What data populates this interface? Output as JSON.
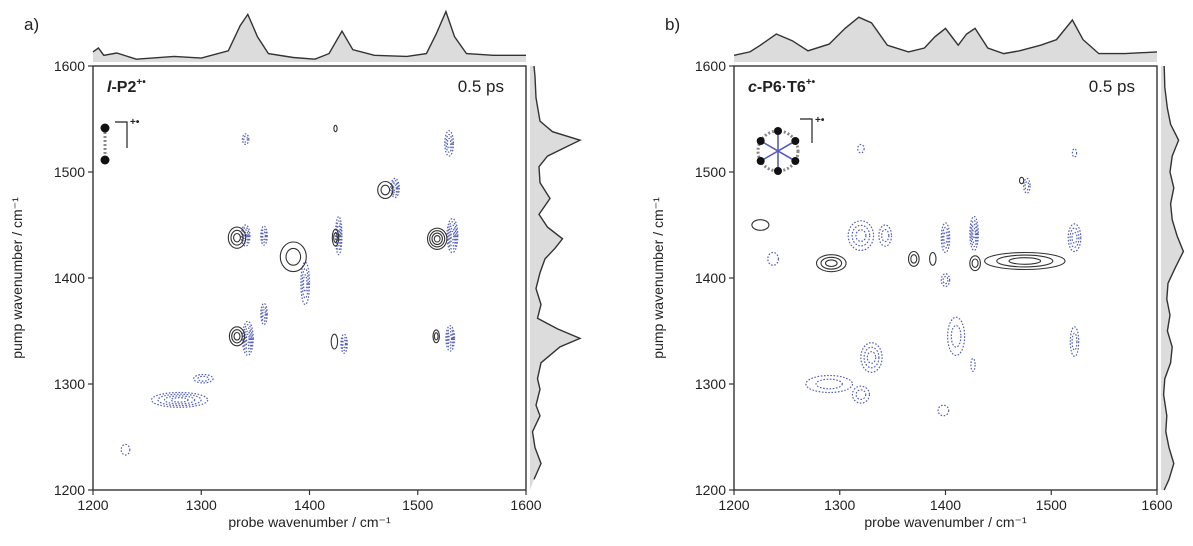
{
  "chart_data": [
    {
      "panel": "a)",
      "type": "contour",
      "sample_label": "l-P2",
      "sample_prefix": "l",
      "sample_rest": "-P2",
      "sample_charge": "+•",
      "time_label": "0.5 ps",
      "xlabel": "probe wavenumber / cm⁻¹",
      "ylabel": "pump wavenumber / cm⁻¹",
      "xlim": [
        1200,
        1600
      ],
      "ylim": [
        1200,
        1600
      ],
      "xticks": [
        "1200",
        "1300",
        "1400",
        "1500",
        "1600"
      ],
      "yticks": [
        "1200",
        "1300",
        "1400",
        "1500",
        "1600"
      ],
      "series": [
        {
          "sign": "negative",
          "color": "#5560b8",
          "style": "dotted",
          "peaks": [
            {
              "x": 1341,
              "y": 1440,
              "sx": 4,
              "sy": 10,
              "levels": 4
            },
            {
              "x": 1343,
              "y": 1343,
              "sx": 5,
              "sy": 16,
              "levels": 5
            },
            {
              "x": 1358,
              "y": 1440,
              "sx": 3,
              "sy": 9,
              "levels": 3
            },
            {
              "x": 1358,
              "y": 1366,
              "sx": 3,
              "sy": 10,
              "levels": 3
            },
            {
              "x": 1427,
              "y": 1440,
              "sx": 3,
              "sy": 18,
              "levels": 4
            },
            {
              "x": 1432,
              "y": 1338,
              "sx": 3,
              "sy": 9,
              "levels": 3
            },
            {
              "x": 1479,
              "y": 1485,
              "sx": 4,
              "sy": 9,
              "levels": 4
            },
            {
              "x": 1532,
              "y": 1440,
              "sx": 5,
              "sy": 16,
              "levels": 5
            },
            {
              "x": 1530,
              "y": 1343,
              "sx": 4,
              "sy": 12,
              "levels": 4
            },
            {
              "x": 1529,
              "y": 1527,
              "sx": 4,
              "sy": 12,
              "levels": 3
            },
            {
              "x": 1341,
              "y": 1531,
              "sx": 3,
              "sy": 5,
              "levels": 2
            },
            {
              "x": 1396,
              "y": 1395,
              "sx": 4,
              "sy": 20,
              "levels": 3
            },
            {
              "x": 1280,
              "y": 1285,
              "sx": 26,
              "sy": 7,
              "levels": 4
            },
            {
              "x": 1230,
              "y": 1238,
              "sx": 4,
              "sy": 5,
              "levels": 1
            },
            {
              "x": 1302,
              "y": 1305,
              "sx": 9,
              "sy": 4,
              "levels": 2
            }
          ]
        },
        {
          "sign": "positive",
          "color": "#333333",
          "style": "solid",
          "peaks": [
            {
              "x": 1333,
              "y": 1438,
              "sx": 8,
              "sy": 10,
              "levels": 3
            },
            {
              "x": 1333,
              "y": 1345,
              "sx": 7,
              "sy": 9,
              "levels": 3
            },
            {
              "x": 1385,
              "y": 1420,
              "sx": 12,
              "sy": 14,
              "levels": 2
            },
            {
              "x": 1424,
              "y": 1438,
              "sx": 3,
              "sy": 8,
              "levels": 2
            },
            {
              "x": 1423,
              "y": 1340,
              "sx": 3,
              "sy": 7,
              "levels": 1
            },
            {
              "x": 1470,
              "y": 1483,
              "sx": 7,
              "sy": 8,
              "levels": 2
            },
            {
              "x": 1518,
              "y": 1437,
              "sx": 9,
              "sy": 10,
              "levels": 4
            },
            {
              "x": 1517,
              "y": 1345,
              "sx": 3,
              "sy": 6,
              "levels": 2
            },
            {
              "x": 1424,
              "y": 1541,
              "sx": 1.5,
              "sy": 3,
              "levels": 1
            }
          ]
        }
      ],
      "top_trace": [
        [
          1200,
          0.18
        ],
        [
          1205,
          0.25
        ],
        [
          1210,
          0.12
        ],
        [
          1222,
          0.16
        ],
        [
          1240,
          0.05
        ],
        [
          1275,
          0.1
        ],
        [
          1300,
          0.07
        ],
        [
          1325,
          0.2
        ],
        [
          1336,
          0.65
        ],
        [
          1343,
          0.85
        ],
        [
          1352,
          0.45
        ],
        [
          1362,
          0.15
        ],
        [
          1385,
          0.08
        ],
        [
          1405,
          0.05
        ],
        [
          1418,
          0.15
        ],
        [
          1430,
          0.55
        ],
        [
          1440,
          0.22
        ],
        [
          1460,
          0.12
        ],
        [
          1490,
          0.1
        ],
        [
          1508,
          0.15
        ],
        [
          1517,
          0.5
        ],
        [
          1526,
          0.9
        ],
        [
          1534,
          0.45
        ],
        [
          1545,
          0.15
        ],
        [
          1570,
          0.12
        ],
        [
          1600,
          0.12
        ]
      ],
      "right_trace": [
        [
          1210,
          0.08
        ],
        [
          1225,
          0.22
        ],
        [
          1240,
          0.1
        ],
        [
          1255,
          0.05
        ],
        [
          1270,
          0.2
        ],
        [
          1280,
          0.12
        ],
        [
          1295,
          0.2
        ],
        [
          1305,
          0.15
        ],
        [
          1320,
          0.22
        ],
        [
          1335,
          0.6
        ],
        [
          1343,
          1.0
        ],
        [
          1352,
          0.55
        ],
        [
          1362,
          0.15
        ],
        [
          1375,
          0.22
        ],
        [
          1390,
          0.12
        ],
        [
          1405,
          0.2
        ],
        [
          1418,
          0.3
        ],
        [
          1428,
          0.5
        ],
        [
          1437,
          0.65
        ],
        [
          1448,
          0.35
        ],
        [
          1460,
          0.18
        ],
        [
          1475,
          0.4
        ],
        [
          1490,
          0.2
        ],
        [
          1505,
          0.18
        ],
        [
          1515,
          0.35
        ],
        [
          1522,
          0.65
        ],
        [
          1530,
          1.0
        ],
        [
          1538,
          0.45
        ],
        [
          1548,
          0.2
        ],
        [
          1570,
          0.12
        ],
        [
          1590,
          0.1
        ],
        [
          1600,
          0.08
        ]
      ]
    },
    {
      "panel": "b)",
      "type": "contour",
      "sample_label": "c-P6·T6",
      "sample_prefix": "c",
      "sample_rest": "-P6·T6",
      "sample_charge": "+•",
      "time_label": "0.5 ps",
      "xlabel": "probe wavenumber / cm⁻¹",
      "ylabel": "pump wavenumber / cm⁻¹",
      "xlim": [
        1200,
        1600
      ],
      "ylim": [
        1200,
        1600
      ],
      "xticks": [
        "1200",
        "1300",
        "1400",
        "1500",
        "1600"
      ],
      "yticks": [
        "1200",
        "1300",
        "1400",
        "1500",
        "1600"
      ],
      "series": [
        {
          "sign": "negative",
          "color": "#5560b8",
          "style": "dotted",
          "peaks": [
            {
              "x": 1320,
              "y": 1440,
              "sx": 12,
              "sy": 14,
              "levels": 3
            },
            {
              "x": 1343,
              "y": 1440,
              "sx": 6,
              "sy": 10,
              "levels": 2
            },
            {
              "x": 1320,
              "y": 1522,
              "sx": 3,
              "sy": 4,
              "levels": 1
            },
            {
              "x": 1400,
              "y": 1438,
              "sx": 4,
              "sy": 14,
              "levels": 3
            },
            {
              "x": 1400,
              "y": 1398,
              "sx": 4,
              "sy": 6,
              "levels": 2
            },
            {
              "x": 1427,
              "y": 1442,
              "sx": 4,
              "sy": 16,
              "levels": 4
            },
            {
              "x": 1477,
              "y": 1487,
              "sx": 3,
              "sy": 7,
              "levels": 2
            },
            {
              "x": 1522,
              "y": 1438,
              "sx": 6,
              "sy": 13,
              "levels": 3
            },
            {
              "x": 1522,
              "y": 1518,
              "sx": 2,
              "sy": 4,
              "levels": 1
            },
            {
              "x": 1522,
              "y": 1340,
              "sx": 4,
              "sy": 14,
              "levels": 2
            },
            {
              "x": 1330,
              "y": 1325,
              "sx": 10,
              "sy": 14,
              "levels": 3
            },
            {
              "x": 1290,
              "y": 1300,
              "sx": 22,
              "sy": 8,
              "levels": 2
            },
            {
              "x": 1320,
              "y": 1290,
              "sx": 8,
              "sy": 8,
              "levels": 2
            },
            {
              "x": 1410,
              "y": 1345,
              "sx": 8,
              "sy": 18,
              "levels": 2
            },
            {
              "x": 1398,
              "y": 1275,
              "sx": 5,
              "sy": 5,
              "levels": 1
            },
            {
              "x": 1237,
              "y": 1418,
              "sx": 5,
              "sy": 6,
              "levels": 1
            },
            {
              "x": 1426,
              "y": 1318,
              "sx": 2,
              "sy": 6,
              "levels": 1
            }
          ]
        },
        {
          "sign": "positive",
          "color": "#333333",
          "style": "solid",
          "peaks": [
            {
              "x": 1225,
              "y": 1450,
              "sx": 8,
              "sy": 5,
              "levels": 1
            },
            {
              "x": 1292,
              "y": 1414,
              "sx": 14,
              "sy": 8,
              "levels": 3
            },
            {
              "x": 1370,
              "y": 1418,
              "sx": 5,
              "sy": 7,
              "levels": 2
            },
            {
              "x": 1388,
              "y": 1418,
              "sx": 3,
              "sy": 6,
              "levels": 1
            },
            {
              "x": 1428,
              "y": 1414,
              "sx": 5,
              "sy": 7,
              "levels": 2
            },
            {
              "x": 1475,
              "y": 1416,
              "sx": 38,
              "sy": 8,
              "levels": 3
            },
            {
              "x": 1472,
              "y": 1492,
              "sx": 2,
              "sy": 3,
              "levels": 1
            }
          ]
        }
      ],
      "top_trace": [
        [
          1200,
          0.12
        ],
        [
          1215,
          0.18
        ],
        [
          1225,
          0.3
        ],
        [
          1240,
          0.5
        ],
        [
          1255,
          0.38
        ],
        [
          1270,
          0.2
        ],
        [
          1290,
          0.32
        ],
        [
          1305,
          0.6
        ],
        [
          1318,
          0.8
        ],
        [
          1330,
          0.7
        ],
        [
          1345,
          0.3
        ],
        [
          1365,
          0.18
        ],
        [
          1380,
          0.25
        ],
        [
          1390,
          0.45
        ],
        [
          1400,
          0.6
        ],
        [
          1412,
          0.3
        ],
        [
          1420,
          0.5
        ],
        [
          1428,
          0.6
        ],
        [
          1440,
          0.25
        ],
        [
          1455,
          0.15
        ],
        [
          1470,
          0.2
        ],
        [
          1490,
          0.3
        ],
        [
          1505,
          0.4
        ],
        [
          1520,
          0.75
        ],
        [
          1530,
          0.4
        ],
        [
          1545,
          0.15
        ],
        [
          1570,
          0.15
        ],
        [
          1600,
          0.18
        ]
      ],
      "right_trace": [
        [
          1200,
          0.1
        ],
        [
          1210,
          0.25
        ],
        [
          1225,
          0.4
        ],
        [
          1240,
          0.25
        ],
        [
          1255,
          0.15
        ],
        [
          1270,
          0.18
        ],
        [
          1290,
          0.08
        ],
        [
          1305,
          0.12
        ],
        [
          1320,
          0.3
        ],
        [
          1335,
          0.35
        ],
        [
          1350,
          0.2
        ],
        [
          1365,
          0.28
        ],
        [
          1380,
          0.18
        ],
        [
          1395,
          0.22
        ],
        [
          1410,
          0.45
        ],
        [
          1425,
          0.7
        ],
        [
          1440,
          0.5
        ],
        [
          1455,
          0.35
        ],
        [
          1470,
          0.3
        ],
        [
          1485,
          0.4
        ],
        [
          1500,
          0.28
        ],
        [
          1515,
          0.35
        ],
        [
          1530,
          0.55
        ],
        [
          1545,
          0.3
        ],
        [
          1560,
          0.2
        ],
        [
          1580,
          0.12
        ],
        [
          1600,
          0.1
        ]
      ]
    }
  ]
}
